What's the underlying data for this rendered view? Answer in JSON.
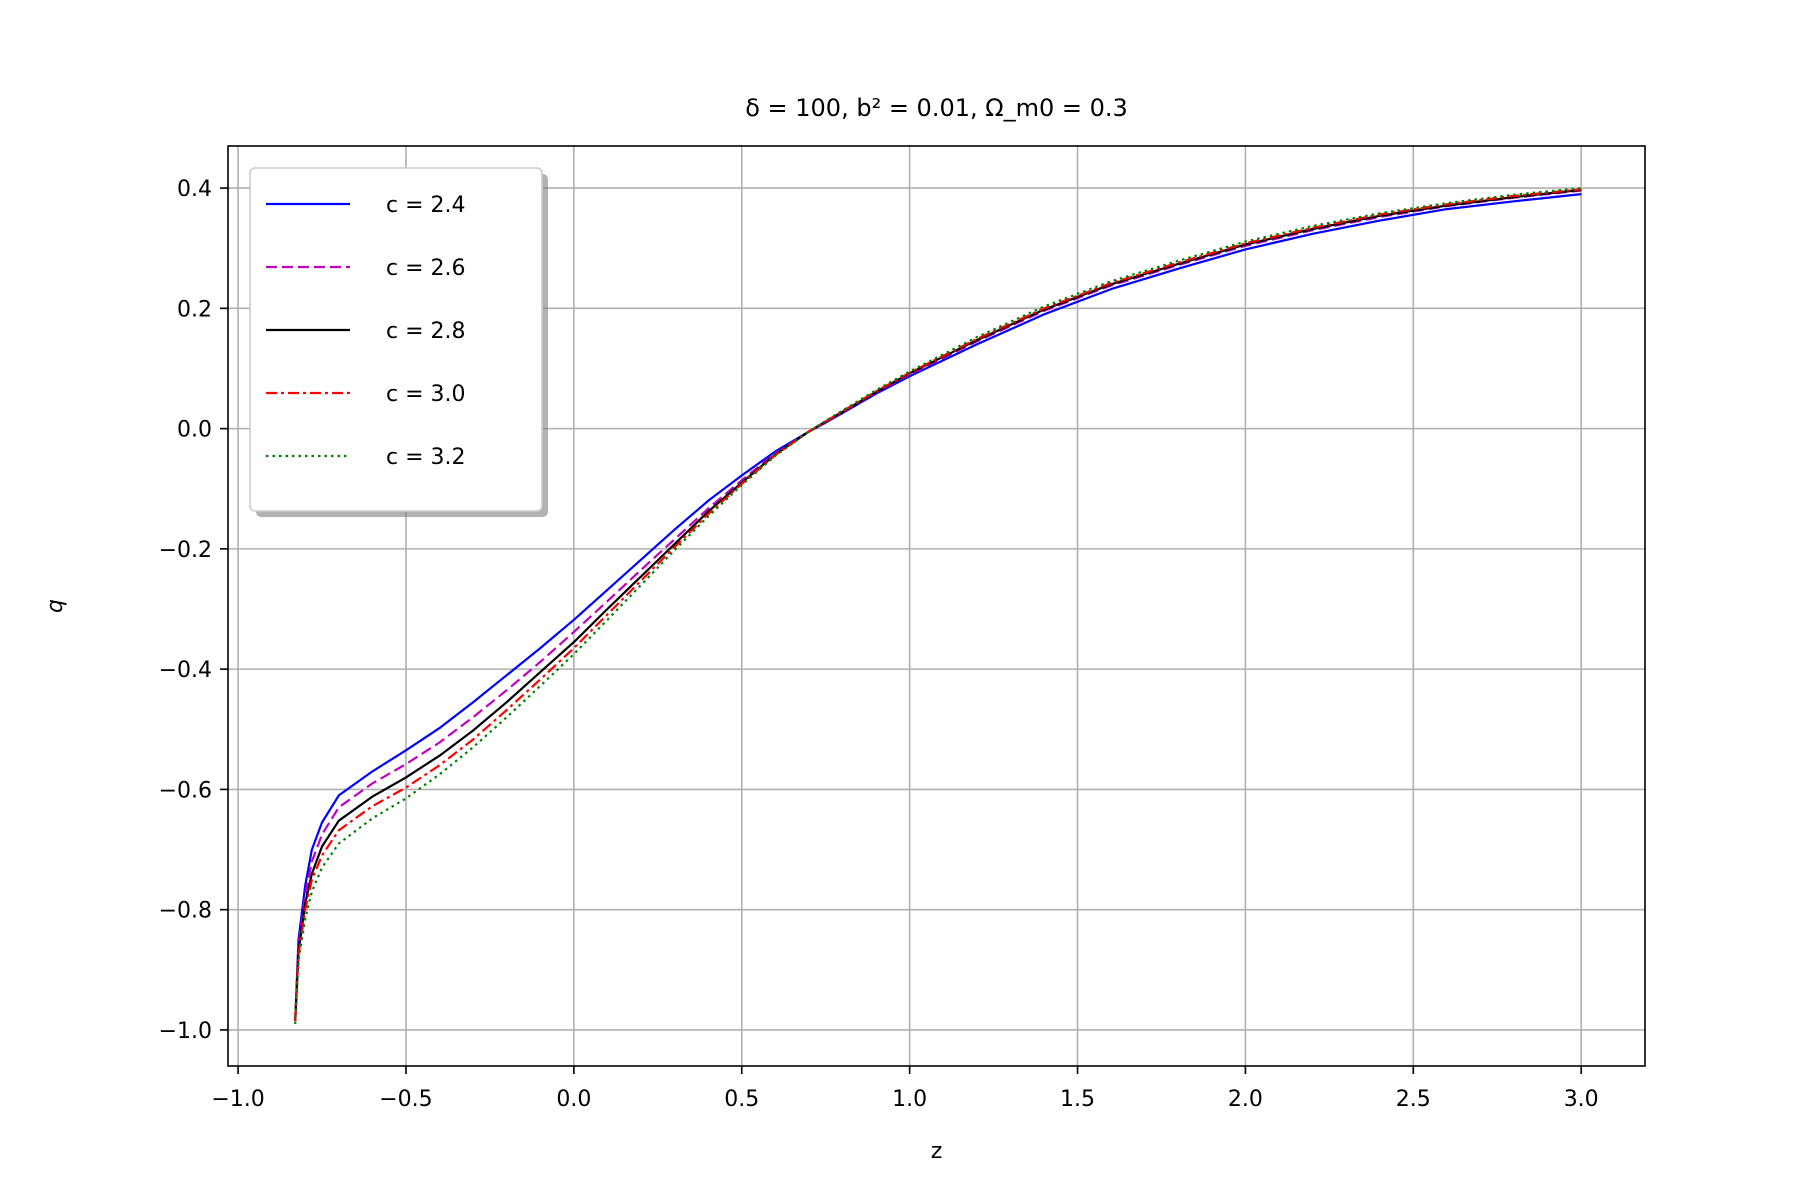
{
  "chart_data": {
    "type": "line",
    "title": "δ = 100, b² = 0.01, Ω_m0 = 0.3",
    "xlabel": "z",
    "ylabel": "q",
    "xlim": [
      -1.03,
      3.19
    ],
    "ylim": [
      -1.06,
      0.47
    ],
    "xticks": [
      -1.0,
      -0.5,
      0.0,
      0.5,
      1.0,
      1.5,
      2.0,
      2.5,
      3.0
    ],
    "xtick_labels": [
      "−1.0",
      "−0.5",
      "0.0",
      "0.5",
      "1.0",
      "1.5",
      "2.0",
      "2.5",
      "3.0"
    ],
    "yticks": [
      0.4,
      0.2,
      0.0,
      -0.2,
      -0.4,
      -0.6,
      -0.8,
      -1.0
    ],
    "ytick_labels": [
      "0.4",
      "0.2",
      "0.0",
      "−0.2",
      "−0.4",
      "−0.6",
      "−0.8",
      "−1.0"
    ],
    "grid": true,
    "legend_position": "top-left",
    "x": [
      -0.83,
      -0.82,
      -0.8,
      -0.78,
      -0.75,
      -0.7,
      -0.6,
      -0.5,
      -0.4,
      -0.3,
      -0.2,
      -0.1,
      0.0,
      0.1,
      0.2,
      0.3,
      0.4,
      0.5,
      0.6,
      0.7,
      0.75,
      0.8,
      0.9,
      1.0,
      1.2,
      1.4,
      1.6,
      1.8,
      2.0,
      2.2,
      2.4,
      2.6,
      2.8,
      3.0
    ],
    "series": [
      {
        "name": "c = 2.4",
        "color": "#0000ff",
        "dash": "solid",
        "values": [
          -0.985,
          -0.85,
          -0.76,
          -0.7,
          -0.655,
          -0.61,
          -0.57,
          -0.535,
          -0.498,
          -0.455,
          -0.41,
          -0.365,
          -0.318,
          -0.268,
          -0.218,
          -0.168,
          -0.12,
          -0.078,
          -0.038,
          -0.005,
          0.01,
          0.026,
          0.058,
          0.087,
          0.14,
          0.19,
          0.232,
          0.266,
          0.298,
          0.324,
          0.346,
          0.365,
          0.378,
          0.39
        ]
      },
      {
        "name": "c = 2.6",
        "color": "#bf00bf",
        "dash": "dashed",
        "values": [
          -0.985,
          -0.86,
          -0.775,
          -0.72,
          -0.675,
          -0.63,
          -0.59,
          -0.558,
          -0.522,
          -0.48,
          -0.435,
          -0.388,
          -0.338,
          -0.287,
          -0.235,
          -0.184,
          -0.133,
          -0.086,
          -0.041,
          -0.005,
          0.011,
          0.027,
          0.06,
          0.09,
          0.145,
          0.196,
          0.238,
          0.272,
          0.304,
          0.33,
          0.352,
          0.37,
          0.384,
          0.396
        ]
      },
      {
        "name": "c = 2.8",
        "color": "#000000",
        "dash": "solid",
        "values": [
          -0.985,
          -0.87,
          -0.79,
          -0.74,
          -0.695,
          -0.652,
          -0.612,
          -0.58,
          -0.544,
          -0.502,
          -0.455,
          -0.405,
          -0.355,
          -0.3,
          -0.246,
          -0.192,
          -0.138,
          -0.09,
          -0.043,
          -0.005,
          0.012,
          0.028,
          0.061,
          0.092,
          0.147,
          0.198,
          0.24,
          0.274,
          0.306,
          0.332,
          0.354,
          0.371,
          0.385,
          0.397
        ]
      },
      {
        "name": "c = 3.0",
        "color": "#ff0000",
        "dash": "dashdot",
        "values": [
          -0.985,
          -0.875,
          -0.8,
          -0.75,
          -0.71,
          -0.668,
          -0.628,
          -0.597,
          -0.56,
          -0.517,
          -0.468,
          -0.417,
          -0.365,
          -0.309,
          -0.253,
          -0.197,
          -0.142,
          -0.092,
          -0.044,
          -0.005,
          0.012,
          0.029,
          0.062,
          0.093,
          0.149,
          0.2,
          0.242,
          0.276,
          0.308,
          0.334,
          0.356,
          0.373,
          0.387,
          0.398
        ]
      },
      {
        "name": "c = 3.2",
        "color": "#008000",
        "dash": "dotted",
        "values": [
          -0.99,
          -0.885,
          -0.815,
          -0.77,
          -0.73,
          -0.69,
          -0.648,
          -0.615,
          -0.575,
          -0.53,
          -0.48,
          -0.428,
          -0.375,
          -0.318,
          -0.26,
          -0.202,
          -0.146,
          -0.094,
          -0.045,
          -0.005,
          0.013,
          0.03,
          0.064,
          0.095,
          0.152,
          0.203,
          0.245,
          0.279,
          0.311,
          0.337,
          0.358,
          0.375,
          0.389,
          0.4
        ]
      }
    ]
  }
}
